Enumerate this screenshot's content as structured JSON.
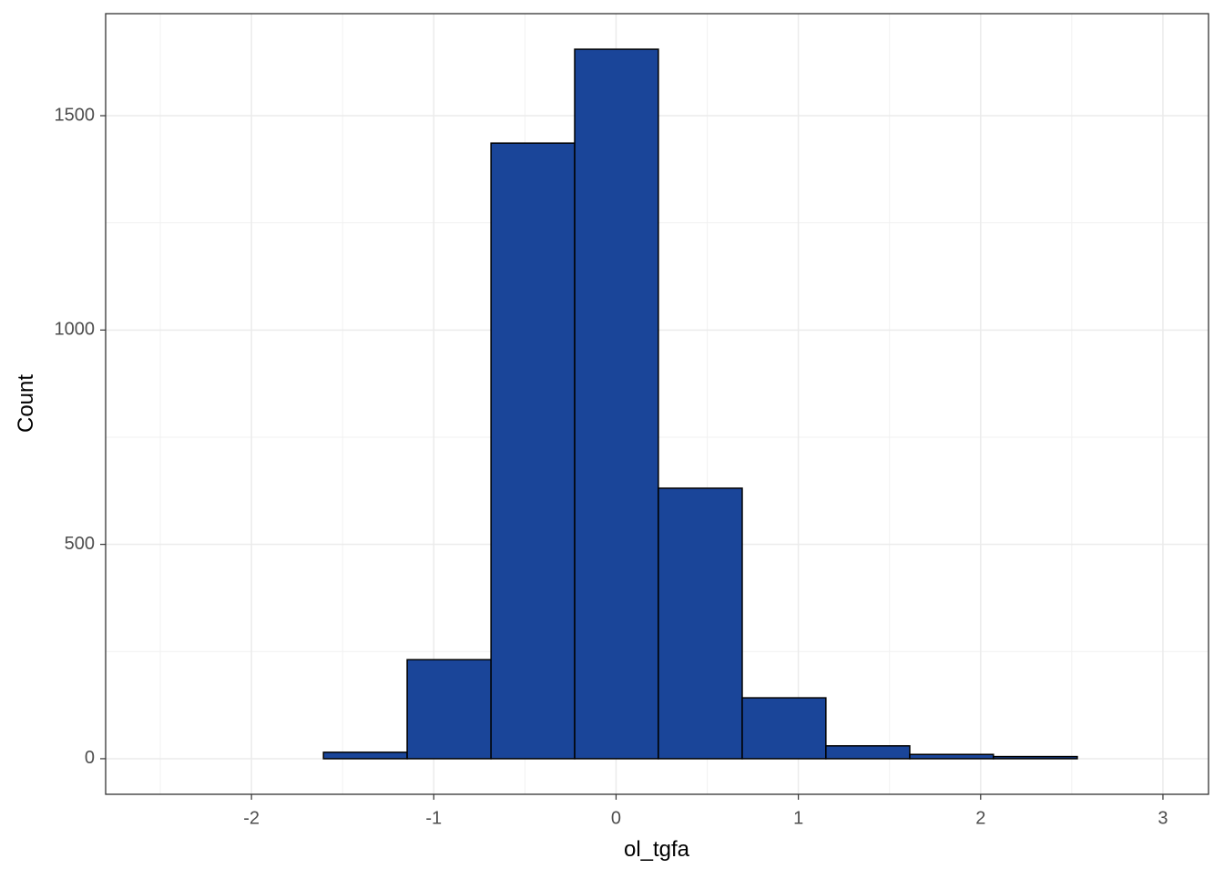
{
  "chart_data": {
    "type": "histogram",
    "x_label": "ol_tgfa",
    "y_label": "Count",
    "bins": [
      -2.524,
      -2.065,
      -1.605,
      -1.146,
      -0.686,
      -0.227,
      0.232,
      0.692,
      1.151,
      1.611,
      2.07,
      2.53,
      2.989
    ],
    "values": [
      0,
      0,
      15,
      231,
      1436,
      1655,
      631,
      142,
      30,
      10,
      5,
      0
    ],
    "color": "#1a4599",
    "edgecolor": "#000000",
    "xlim": [
      -2.8,
      3.25
    ],
    "xticks": [
      -2,
      -1,
      0,
      1,
      2,
      3
    ],
    "ylim": [
      -83,
      1738
    ],
    "yticks": [
      0,
      500,
      1000,
      1500
    ],
    "grid": true,
    "minor_grid": true
  }
}
